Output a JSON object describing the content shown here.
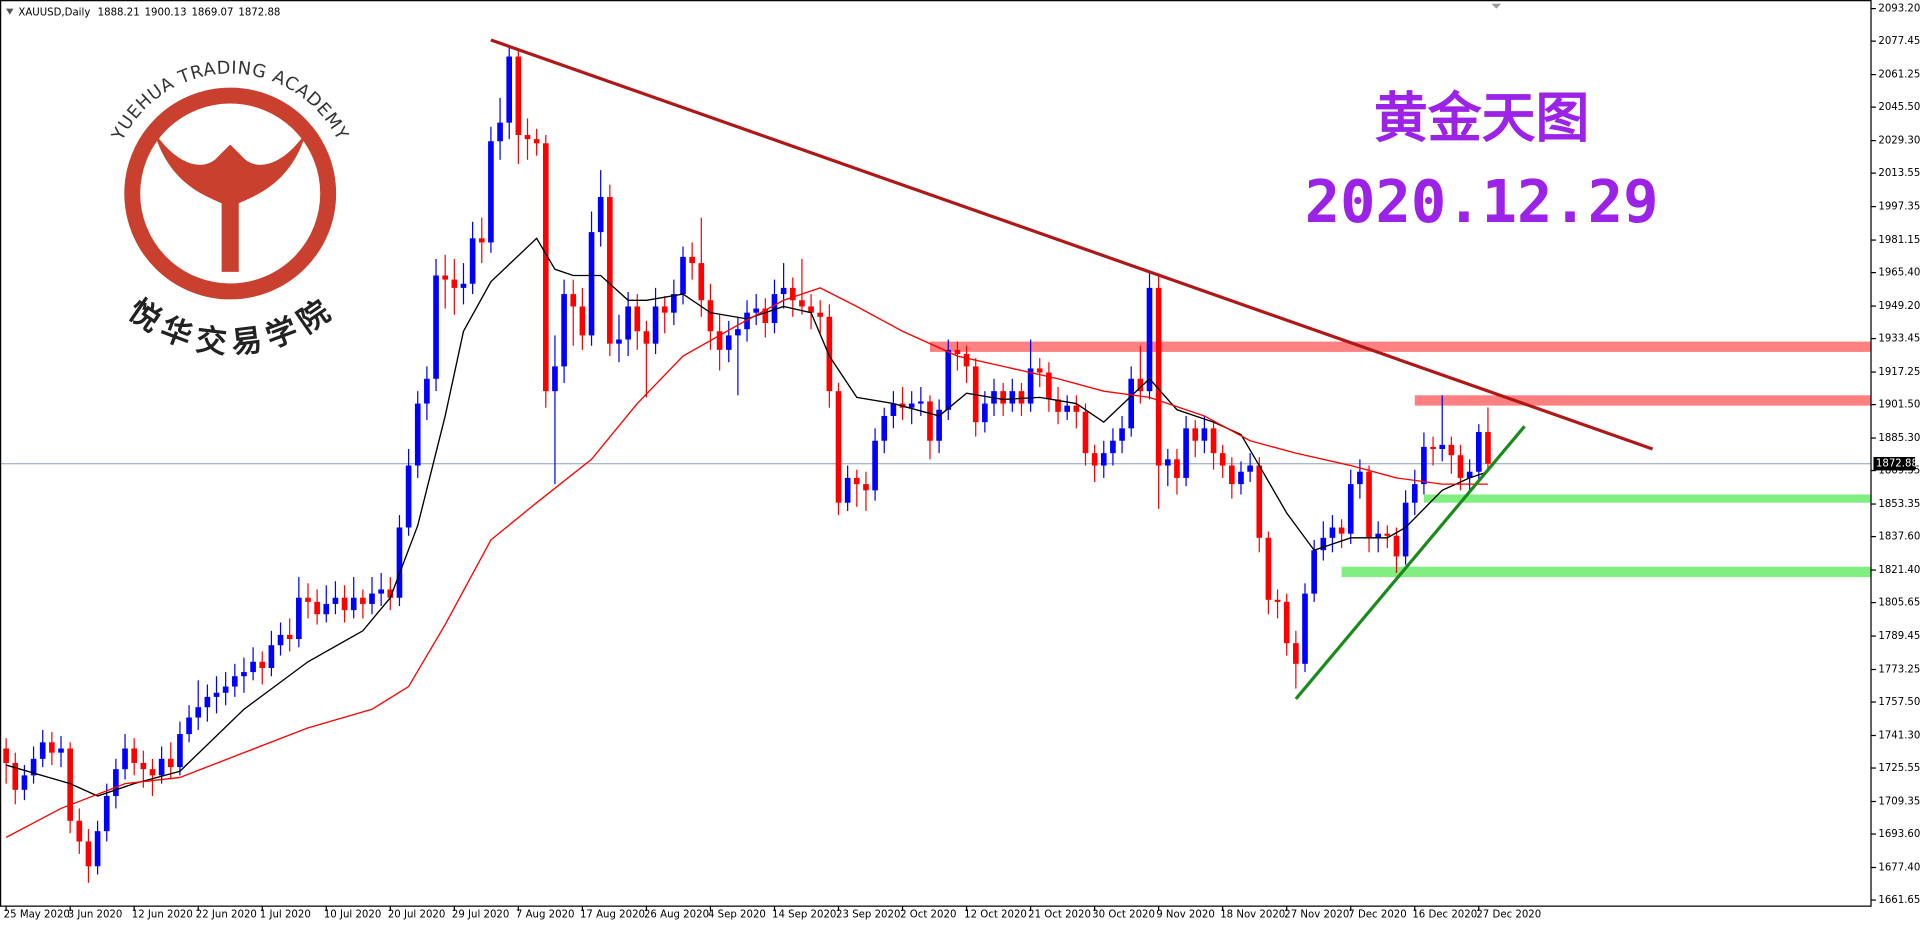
{
  "chart_data": {
    "type": "candlestick",
    "symbol": "XAUUSD,Daily",
    "title": "黄金天图",
    "subtitle": "2020.12.29",
    "logo": {
      "top": "YUEHUA TRADING ACADEMY",
      "bottom": "悦华交易学院"
    },
    "up_color": "#0000ff",
    "down_color": "#ff0000",
    "xlim": [
      -0.67,
      203.88
    ],
    "ylim": [
      1658.69,
      2097.35
    ],
    "xticks": [
      {
        "value": 0,
        "label": "25 May 2020"
      },
      {
        "value": 7,
        "label": "3 Jun 2020"
      },
      {
        "value": 14,
        "label": "12 Jun 2020"
      },
      {
        "value": 21,
        "label": "22 Jun 2020"
      },
      {
        "value": 28,
        "label": "1 Jul 2020"
      },
      {
        "value": 35,
        "label": "10 Jul 2020"
      },
      {
        "value": 42,
        "label": "20 Jul 2020"
      },
      {
        "value": 49,
        "label": "29 Jul 2020"
      },
      {
        "value": 56,
        "label": "7 Aug 2020"
      },
      {
        "value": 63,
        "label": "17 Aug 2020"
      },
      {
        "value": 70,
        "label": "26 Aug 2020"
      },
      {
        "value": 77,
        "label": "4 Sep 2020"
      },
      {
        "value": 84,
        "label": "14 Sep 2020"
      },
      {
        "value": 91,
        "label": "23 Sep 2020"
      },
      {
        "value": 98,
        "label": "2 Oct 2020"
      },
      {
        "value": 105,
        "label": "12 Oct 2020"
      },
      {
        "value": 112,
        "label": "21 Oct 2020"
      },
      {
        "value": 119,
        "label": "30 Oct 2020"
      },
      {
        "value": 126,
        "label": "9 Nov 2020"
      },
      {
        "value": 133,
        "label": "18 Nov 2020"
      },
      {
        "value": 140,
        "label": "27 Nov 2020"
      },
      {
        "value": 147,
        "label": "7 Dec 2020"
      },
      {
        "value": 154,
        "label": "16 Dec 2020"
      },
      {
        "value": 161,
        "label": "27 Dec 2020"
      }
    ],
    "yticks": [
      {
        "value": 2093.2,
        "label": "2093.20"
      },
      2077.45,
      2061.25,
      {
        "value": 2045.5,
        "label": "2045.50"
      },
      {
        "value": 2029.3,
        "label": "2029.30"
      },
      2013.55,
      1997.35,
      1981.15,
      {
        "value": 1965.4,
        "label": "1965.40"
      },
      {
        "value": 1949.2,
        "label": "1949.20"
      },
      1933.45,
      1917.25,
      {
        "value": 1901.5,
        "label": "1901.50"
      },
      {
        "value": 1885.3,
        "label": "1885.30"
      },
      1869.55,
      1853.35,
      {
        "value": 1837.6,
        "label": "1837.60"
      },
      {
        "value": 1821.4,
        "label": "1821.40"
      },
      1805.65,
      1789.45,
      1773.25,
      {
        "value": 1757.5,
        "label": "1757.50"
      },
      {
        "value": 1741.3,
        "label": "1741.30"
      },
      1725.55,
      1709.35,
      {
        "value": 1693.6,
        "label": "1693.60"
      },
      {
        "value": 1677.4,
        "label": "1677.40"
      },
      1661.65
    ],
    "ohlc": [
      [
        1735,
        1740,
        1718,
        1728
      ],
      [
        1728,
        1733,
        1708,
        1715
      ],
      [
        1715,
        1727,
        1710,
        1722
      ],
      [
        1722,
        1736,
        1718,
        1730
      ],
      [
        1730,
        1744,
        1726,
        1738
      ],
      [
        1738,
        1743,
        1727,
        1733
      ],
      [
        1733,
        1741,
        1726,
        1735
      ],
      [
        1735,
        1738,
        1694,
        1700
      ],
      [
        1700,
        1706,
        1684,
        1690
      ],
      [
        1690,
        1696,
        1670,
        1678
      ],
      [
        1678,
        1700,
        1674,
        1695
      ],
      [
        1695,
        1718,
        1690,
        1712
      ],
      [
        1712,
        1730,
        1706,
        1725
      ],
      [
        1725,
        1742,
        1720,
        1735
      ],
      [
        1735,
        1740,
        1722,
        1728
      ],
      [
        1728,
        1734,
        1716,
        1725
      ],
      [
        1725,
        1730,
        1712,
        1722
      ],
      [
        1722,
        1736,
        1718,
        1730
      ],
      [
        1730,
        1738,
        1720,
        1726
      ],
      [
        1726,
        1748,
        1722,
        1742
      ],
      [
        1742,
        1756,
        1738,
        1750
      ],
      [
        1750,
        1768,
        1744,
        1755
      ],
      [
        1755,
        1766,
        1748,
        1760
      ],
      [
        1760,
        1770,
        1752,
        1762
      ],
      [
        1762,
        1772,
        1756,
        1765
      ],
      [
        1765,
        1776,
        1760,
        1770
      ],
      [
        1770,
        1779,
        1762,
        1772
      ],
      [
        1772,
        1784,
        1768,
        1777
      ],
      [
        1777,
        1782,
        1766,
        1774
      ],
      [
        1774,
        1792,
        1770,
        1785
      ],
      [
        1785,
        1796,
        1780,
        1790
      ],
      [
        1790,
        1798,
        1782,
        1788
      ],
      [
        1788,
        1818,
        1784,
        1808
      ],
      [
        1808,
        1815,
        1798,
        1806
      ],
      [
        1806,
        1812,
        1795,
        1800
      ],
      [
        1800,
        1814,
        1796,
        1805
      ],
      [
        1805,
        1816,
        1800,
        1808
      ],
      [
        1808,
        1814,
        1796,
        1802
      ],
      [
        1802,
        1818,
        1798,
        1808
      ],
      [
        1808,
        1812,
        1798,
        1805
      ],
      [
        1805,
        1818,
        1800,
        1810
      ],
      [
        1810,
        1820,
        1804,
        1812
      ],
      [
        1812,
        1818,
        1802,
        1808
      ],
      [
        1808,
        1848,
        1804,
        1842
      ],
      [
        1842,
        1880,
        1838,
        1872
      ],
      [
        1872,
        1908,
        1866,
        1902
      ],
      [
        1902,
        1920,
        1894,
        1914
      ],
      [
        1914,
        1972,
        1908,
        1964
      ],
      [
        1964,
        1974,
        1948,
        1962
      ],
      [
        1962,
        1972,
        1945,
        1958
      ],
      [
        1958,
        1970,
        1950,
        1960
      ],
      [
        1960,
        1990,
        1955,
        1982
      ],
      [
        1982,
        1992,
        1970,
        1980
      ],
      [
        1980,
        2036,
        1975,
        2029
      ],
      [
        2029,
        2050,
        2020,
        2038
      ],
      [
        2038,
        2075,
        2030,
        2070
      ],
      [
        2070,
        2073,
        2018,
        2032
      ],
      [
        2032,
        2040,
        2020,
        2030
      ],
      [
        2030,
        2035,
        2022,
        2028
      ],
      [
        2028,
        2032,
        1900,
        1908
      ],
      [
        1908,
        1935,
        1863,
        1920
      ],
      [
        1920,
        1962,
        1912,
        1955
      ],
      [
        1955,
        1962,
        1930,
        1949
      ],
      [
        1949,
        1958,
        1928,
        1935
      ],
      [
        1935,
        1995,
        1930,
        1985
      ],
      [
        1985,
        2015,
        1978,
        2002
      ],
      [
        2002,
        2008,
        1925,
        1931
      ],
      [
        1931,
        1945,
        1922,
        1933
      ],
      [
        1933,
        1956,
        1925,
        1949
      ],
      [
        1949,
        1955,
        1928,
        1937
      ],
      [
        1937,
        1942,
        1905,
        1931
      ],
      [
        1931,
        1958,
        1926,
        1949
      ],
      [
        1949,
        1954,
        1936,
        1946
      ],
      [
        1946,
        1962,
        1940,
        1955
      ],
      [
        1955,
        1978,
        1950,
        1973
      ],
      [
        1973,
        1980,
        1962,
        1970
      ],
      [
        1970,
        1992,
        1944,
        1952
      ],
      [
        1952,
        1960,
        1928,
        1937
      ],
      [
        1937,
        1945,
        1918,
        1928
      ],
      [
        1928,
        1942,
        1922,
        1935
      ],
      [
        1935,
        1944,
        1906,
        1938
      ],
      [
        1938,
        1952,
        1932,
        1946
      ],
      [
        1946,
        1955,
        1940,
        1948
      ],
      [
        1948,
        1953,
        1934,
        1941
      ],
      [
        1941,
        1962,
        1936,
        1955
      ],
      [
        1955,
        1970,
        1948,
        1958
      ],
      [
        1958,
        1963,
        1944,
        1952
      ],
      [
        1952,
        1972,
        1945,
        1949
      ],
      [
        1949,
        1955,
        1938,
        1946
      ],
      [
        1946,
        1952,
        1936,
        1944
      ],
      [
        1944,
        1950,
        1900,
        1908
      ],
      [
        1908,
        1912,
        1848,
        1854
      ],
      [
        1854,
        1872,
        1850,
        1866
      ],
      [
        1866,
        1870,
        1852,
        1863
      ],
      [
        1863,
        1869,
        1850,
        1860
      ],
      [
        1860,
        1890,
        1855,
        1884
      ],
      [
        1884,
        1900,
        1878,
        1896
      ],
      [
        1896,
        1908,
        1890,
        1902
      ],
      [
        1902,
        1910,
        1894,
        1900
      ],
      [
        1900,
        1908,
        1892,
        1902
      ],
      [
        1902,
        1910,
        1896,
        1903
      ],
      [
        1903,
        1906,
        1875,
        1884
      ],
      [
        1884,
        1904,
        1878,
        1899
      ],
      [
        1899,
        1933,
        1894,
        1928
      ],
      [
        1928,
        1932,
        1918,
        1926
      ],
      [
        1926,
        1930,
        1912,
        1920
      ],
      [
        1920,
        1924,
        1886,
        1893
      ],
      [
        1893,
        1908,
        1888,
        1902
      ],
      [
        1902,
        1914,
        1896,
        1908
      ],
      [
        1908,
        1912,
        1896,
        1902
      ],
      [
        1902,
        1914,
        1898,
        1908
      ],
      [
        1908,
        1912,
        1896,
        1902
      ],
      [
        1902,
        1933,
        1898,
        1919
      ],
      [
        1919,
        1924,
        1910,
        1917
      ],
      [
        1917,
        1922,
        1898,
        1904
      ],
      [
        1904,
        1910,
        1892,
        1898
      ],
      [
        1898,
        1906,
        1894,
        1901
      ],
      [
        1901,
        1906,
        1890,
        1898
      ],
      [
        1898,
        1902,
        1872,
        1878
      ],
      [
        1878,
        1882,
        1864,
        1872
      ],
      [
        1872,
        1884,
        1866,
        1878
      ],
      [
        1878,
        1890,
        1872,
        1884
      ],
      [
        1884,
        1896,
        1878,
        1890
      ],
      [
        1890,
        1920,
        1886,
        1914
      ],
      [
        1914,
        1930,
        1902,
        1908
      ],
      [
        1908,
        1966,
        1904,
        1958
      ],
      [
        1958,
        1965,
        1851,
        1872
      ],
      [
        1872,
        1880,
        1862,
        1875
      ],
      [
        1875,
        1880,
        1858,
        1866
      ],
      [
        1866,
        1896,
        1862,
        1890
      ],
      [
        1890,
        1894,
        1876,
        1884
      ],
      [
        1884,
        1896,
        1878,
        1890
      ],
      [
        1890,
        1894,
        1870,
        1878
      ],
      [
        1878,
        1882,
        1866,
        1872
      ],
      [
        1872,
        1876,
        1856,
        1863
      ],
      [
        1863,
        1874,
        1858,
        1869
      ],
      [
        1869,
        1878,
        1864,
        1872
      ],
      [
        1872,
        1876,
        1830,
        1837
      ],
      [
        1837,
        1840,
        1800,
        1807
      ],
      [
        1807,
        1812,
        1798,
        1806
      ],
      [
        1806,
        1810,
        1780,
        1786
      ],
      [
        1786,
        1792,
        1764,
        1776
      ],
      [
        1776,
        1815,
        1772,
        1810
      ],
      [
        1810,
        1836,
        1806,
        1831
      ],
      [
        1831,
        1845,
        1826,
        1837
      ],
      [
        1837,
        1848,
        1830,
        1842
      ],
      [
        1842,
        1846,
        1832,
        1839
      ],
      [
        1839,
        1870,
        1834,
        1863
      ],
      [
        1863,
        1875,
        1856,
        1869
      ],
      [
        1869,
        1872,
        1830,
        1837
      ],
      [
        1837,
        1845,
        1830,
        1839
      ],
      [
        1839,
        1843,
        1832,
        1838
      ],
      [
        1838,
        1842,
        1820,
        1828
      ],
      [
        1828,
        1860,
        1824,
        1854
      ],
      [
        1854,
        1870,
        1848,
        1863
      ],
      [
        1863,
        1888,
        1858,
        1881
      ],
      [
        1881,
        1886,
        1872,
        1880
      ],
      [
        1880,
        1906,
        1874,
        1882
      ],
      [
        1882,
        1886,
        1868,
        1877
      ],
      [
        1877,
        1882,
        1860,
        1866
      ],
      [
        1866,
        1875,
        1860,
        1869
      ],
      [
        1869,
        1892,
        1865,
        1888.21
      ],
      [
        1888.21,
        1900.13,
        1869.07,
        1872.88
      ]
    ],
    "lines": [
      {
        "color": "#000000",
        "x": [
          0,
          7,
          10,
          14,
          19,
          26,
          33,
          39,
          42,
          45,
          48,
          50,
          53,
          58,
          60,
          62,
          65,
          68,
          70,
          74,
          77,
          81,
          85,
          88,
          90,
          93,
          97,
          102,
          105,
          109,
          113,
          117,
          120,
          125,
          128,
          132,
          135,
          137,
          140,
          143,
          147,
          151,
          153,
          157,
          160,
          162
        ],
        "values": [
          1727,
          1718,
          1712,
          1718,
          1724,
          1754,
          1777,
          1792,
          1808,
          1843,
          1896,
          1937,
          1961,
          1982,
          1967,
          1964,
          1964,
          1952,
          1952,
          1955,
          1946,
          1943,
          1949,
          1946,
          1925,
          1905,
          1902,
          1896,
          1907,
          1904,
          1905,
          1902,
          1893,
          1914,
          1899,
          1893,
          1887,
          1872,
          1849,
          1831,
          1837,
          1837,
          1842,
          1860,
          1866,
          1869
        ]
      },
      {
        "color": "#ff0000",
        "x": [
          0,
          6,
          13,
          19,
          26,
          33,
          40,
          44,
          48,
          53,
          58,
          64,
          69,
          74,
          80,
          85,
          89,
          93,
          98,
          104,
          109,
          115,
          120,
          125,
          131,
          136,
          141,
          147,
          152,
          157,
          162
        ],
        "values": [
          1692,
          1706,
          1718,
          1721,
          1733,
          1745,
          1754,
          1765,
          1795,
          1836,
          1854,
          1875,
          1902,
          1925,
          1940,
          1952,
          1958,
          1949,
          1937,
          1925,
          1920,
          1914,
          1908,
          1905,
          1896,
          1884,
          1878,
          1872,
          1866,
          1863,
          1863
        ]
      }
    ],
    "trendlines": [
      {
        "color": "#b01818",
        "x": [
          53,
          180
        ],
        "y": [
          2078,
          1880
        ]
      },
      {
        "color": "#1a8a1a",
        "x": [
          141,
          166
        ],
        "y": [
          1759,
          1891
        ]
      }
    ],
    "zones": [
      {
        "color": "#ff8080",
        "start": 101,
        "low": 1927,
        "high": 1932
      },
      {
        "color": "#ff8080",
        "start": 154,
        "low": 1901,
        "high": 1906
      },
      {
        "color": "#80ee80",
        "start": 155,
        "low": 1854,
        "high": 1858
      },
      {
        "color": "#80ee80",
        "start": 146,
        "low": 1818,
        "high": 1823
      }
    ],
    "bid_color": "#8aa0b8"
  }
}
